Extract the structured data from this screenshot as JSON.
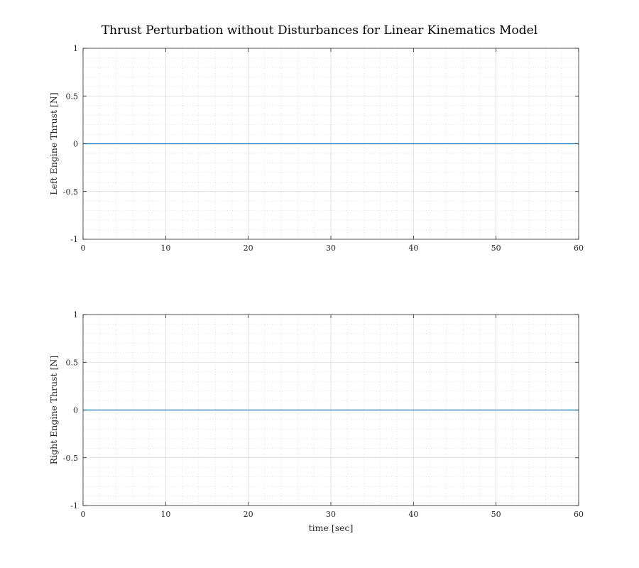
{
  "figure": {
    "title": "Thrust Perturbation without Disturbances for Linear Kinematics Model"
  },
  "colors": {
    "series": "#0072BD",
    "axes": "#262626",
    "major_grid": "#dcdcdc",
    "minor_grid": "#d0d0d0"
  },
  "chart_data": [
    {
      "type": "line",
      "title": "Thrust Perturbation without Disturbances for Linear Kinematics Model",
      "xlabel": "",
      "ylabel": "Left Engine Thrust [N]",
      "xlim": [
        0,
        60
      ],
      "ylim": [
        -1,
        1
      ],
      "xticks": [
        0,
        10,
        20,
        30,
        40,
        50,
        60
      ],
      "xtick_labels": [
        "0",
        "10",
        "20",
        "30",
        "40",
        "50",
        "60"
      ],
      "yticks": [
        -1,
        -0.5,
        0,
        0.5,
        1
      ],
      "ytick_labels": [
        "-1",
        "-0.5",
        "0",
        "0.5",
        "1"
      ],
      "grid": true,
      "minor_grid": true,
      "series": [
        {
          "name": "Left Engine Thrust",
          "x": [
            0,
            60
          ],
          "y": [
            0,
            0
          ]
        }
      ]
    },
    {
      "type": "line",
      "title": "",
      "xlabel": "time [sec]",
      "ylabel": "Right Engine Thrust [N]",
      "xlim": [
        0,
        60
      ],
      "ylim": [
        -1,
        1
      ],
      "xticks": [
        0,
        10,
        20,
        30,
        40,
        50,
        60
      ],
      "xtick_labels": [
        "0",
        "10",
        "20",
        "30",
        "40",
        "50",
        "60"
      ],
      "yticks": [
        -1,
        -0.5,
        0,
        0.5,
        1
      ],
      "ytick_labels": [
        "-1",
        "-0.5",
        "0",
        "0.5",
        "1"
      ],
      "grid": true,
      "minor_grid": true,
      "series": [
        {
          "name": "Right Engine Thrust",
          "x": [
            0,
            60
          ],
          "y": [
            0,
            0
          ]
        }
      ]
    }
  ]
}
